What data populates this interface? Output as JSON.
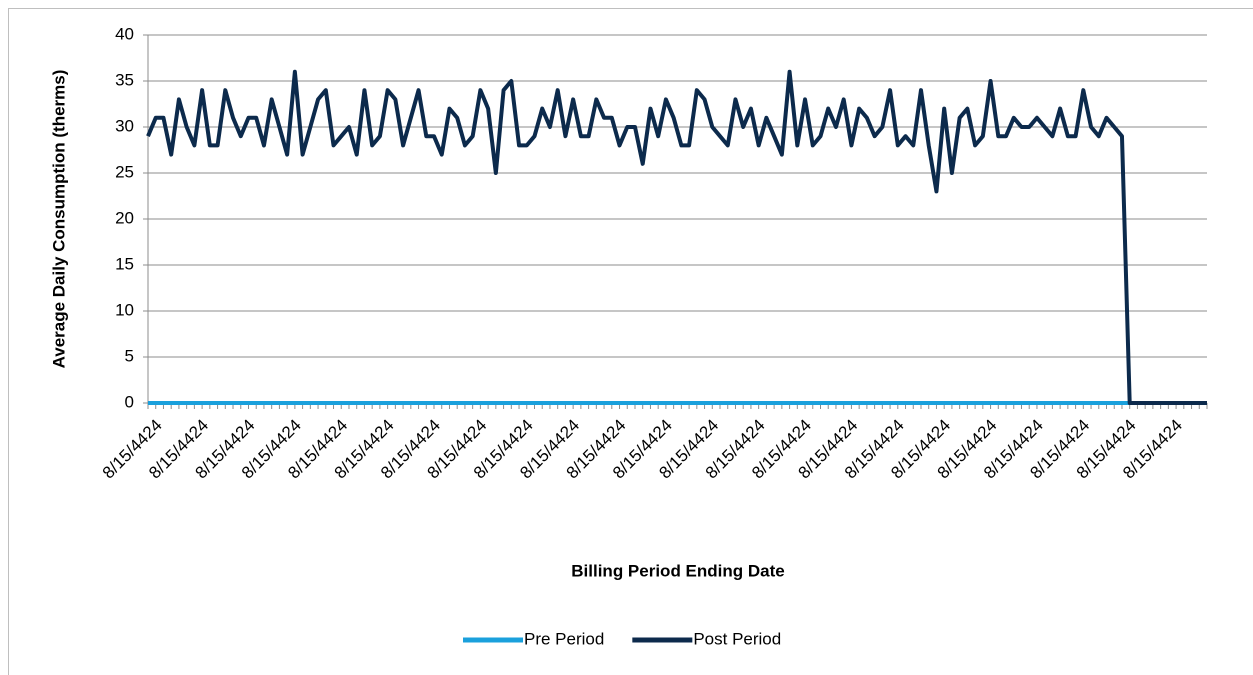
{
  "chart_data": {
    "type": "line",
    "x_label": "Billing Period Ending Date",
    "y_label": "Average Daily Consumption (therms)",
    "categories": [
      null,
      "8/15/4424",
      null,
      null,
      null,
      null,
      null,
      "8/15/4424",
      null,
      null,
      null,
      null,
      null,
      "8/15/4424",
      null,
      null,
      null,
      null,
      null,
      "8/15/4424",
      null,
      null,
      null,
      null,
      null,
      "8/15/4424",
      null,
      null,
      null,
      null,
      null,
      "8/15/4424",
      null,
      null,
      null,
      null,
      null,
      "8/15/4424",
      null,
      null,
      null,
      null,
      null,
      "8/15/4424",
      null,
      null,
      null,
      null,
      null,
      "8/15/4424",
      null,
      null,
      null,
      null,
      null,
      "8/15/4424",
      null,
      null,
      null,
      null,
      null,
      "8/15/4424",
      null,
      null,
      null,
      null,
      null,
      "8/15/4424",
      null,
      null,
      null,
      null,
      null,
      "8/15/4424",
      null,
      null,
      null,
      null,
      null,
      "8/15/4424",
      null,
      null,
      null,
      null,
      null,
      "8/15/4424",
      null,
      null,
      null,
      null,
      null,
      "8/15/4424",
      null,
      null,
      null,
      null,
      null,
      "8/15/4424",
      null,
      null,
      null,
      null,
      null,
      "8/15/4424",
      null,
      null,
      null,
      null,
      null,
      "8/15/4424",
      null,
      null,
      null,
      null,
      null,
      "8/15/4424",
      null,
      null,
      null,
      null,
      null,
      "8/15/4424",
      null,
      null,
      null,
      null,
      null,
      "8/15/4424",
      null,
      null,
      null,
      null,
      null,
      "8/15/4424",
      null,
      null,
      null,
      null
    ],
    "series": [
      {
        "name": "Pre Period",
        "color": "#1aa0dc",
        "values": [
          0,
          0,
          0,
          0,
          0,
          0,
          0,
          0,
          0,
          0,
          0,
          0,
          0,
          0,
          0,
          0,
          0,
          0,
          0,
          0,
          0,
          0,
          0,
          0,
          0,
          0,
          0,
          0,
          0,
          0,
          0,
          0,
          0,
          0,
          0,
          0,
          0,
          0,
          0,
          0,
          0,
          0,
          0,
          0,
          0,
          0,
          0,
          0,
          0,
          0,
          0,
          0,
          0,
          0,
          0,
          0,
          0,
          0,
          0,
          0,
          0,
          0,
          0,
          0,
          0,
          0,
          0,
          0,
          0,
          0,
          0,
          0,
          0,
          0,
          0,
          0,
          0,
          0,
          0,
          0,
          0,
          0,
          0,
          0,
          0,
          0,
          0,
          0,
          0,
          0,
          0,
          0,
          0,
          0,
          0,
          0,
          0,
          0,
          0,
          0,
          0,
          0,
          0,
          0,
          0,
          0,
          0,
          0,
          0,
          0,
          0,
          0,
          0,
          0,
          0,
          0,
          0,
          0,
          0,
          0,
          0,
          0,
          0,
          0,
          0,
          0,
          0,
          0,
          null,
          null,
          null,
          null,
          null,
          null,
          null,
          null,
          null,
          null
        ]
      },
      {
        "name": "Post Period",
        "color": "#0c2a4c",
        "values": [
          29,
          31,
          31,
          27,
          33,
          30,
          28,
          34,
          28,
          28,
          34,
          31,
          29,
          31,
          31,
          28,
          33,
          30,
          27,
          36,
          27,
          30,
          33,
          34,
          28,
          29,
          30,
          27,
          34,
          28,
          29,
          34,
          33,
          28,
          31,
          34,
          29,
          29,
          27,
          32,
          31,
          28,
          29,
          34,
          32,
          25,
          34,
          35,
          28,
          28,
          29,
          32,
          30,
          34,
          29,
          33,
          29,
          29,
          33,
          31,
          31,
          28,
          30,
          30,
          26,
          32,
          29,
          33,
          31,
          28,
          28,
          34,
          33,
          30,
          29,
          28,
          33,
          30,
          32,
          28,
          31,
          29,
          27,
          36,
          28,
          33,
          28,
          29,
          32,
          30,
          33,
          28,
          32,
          31,
          29,
          30,
          34,
          28,
          29,
          28,
          34,
          28,
          23,
          32,
          25,
          31,
          32,
          28,
          29,
          35,
          29,
          29,
          31,
          30,
          30,
          31,
          30,
          29,
          32,
          29,
          29,
          34,
          30,
          29,
          31,
          30,
          29,
          0,
          0,
          0,
          0,
          0,
          0,
          0,
          0,
          0,
          0,
          0
        ]
      }
    ],
    "ylim": [
      0,
      40
    ],
    "yticks": [
      0,
      5,
      10,
      15,
      20,
      25,
      30,
      35,
      40
    ],
    "grid": true,
    "legend": "bottom"
  }
}
